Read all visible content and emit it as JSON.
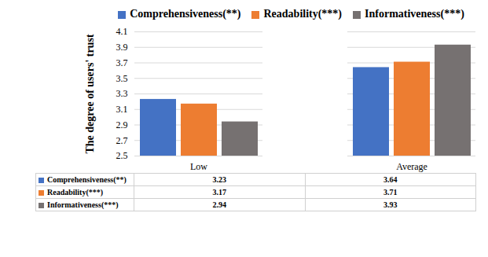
{
  "chart_data": {
    "type": "bar",
    "categories": [
      "Low",
      "Average"
    ],
    "y_label": "The degree of users' trust",
    "series": [
      {
        "name": "Comprehensiveness(**)",
        "color": "#4472c4",
        "values": [
          3.23,
          3.64
        ]
      },
      {
        "name": "Readability(***)",
        "color": "#ed7d31",
        "values": [
          3.17,
          3.71
        ]
      },
      {
        "name": "Informativeness(***)",
        "color": "#767171",
        "values": [
          2.94,
          3.93
        ]
      }
    ],
    "ylim": [
      2.5,
      4.1
    ],
    "yticks": [
      2.5,
      2.7,
      2.9,
      3.1,
      3.3,
      3.5,
      3.7,
      3.9,
      4.1
    ],
    "grid": true,
    "legend": "top"
  }
}
